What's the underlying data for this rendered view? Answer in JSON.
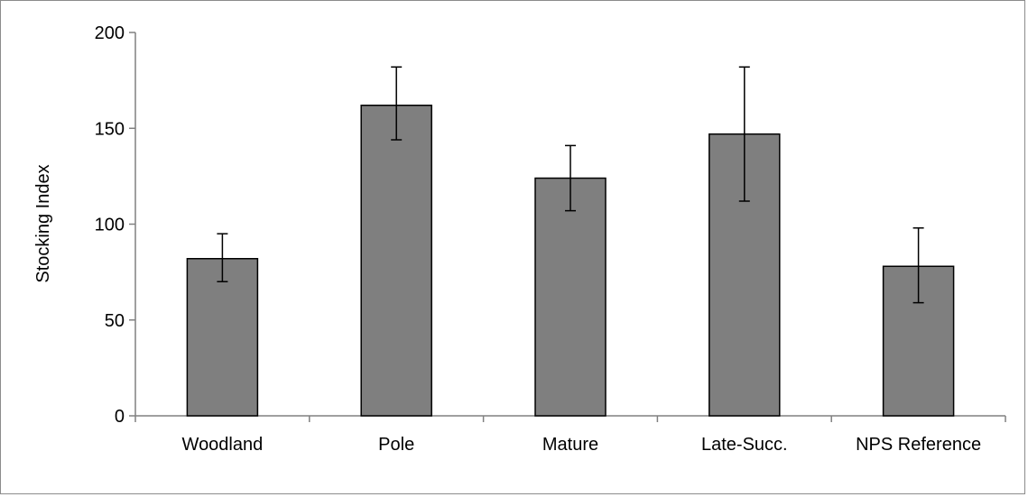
{
  "chart_data": {
    "type": "bar",
    "title": "",
    "xlabel": "",
    "ylabel": "Stocking Index",
    "ylim": [
      0,
      200
    ],
    "yticks": [
      0,
      50,
      100,
      150,
      200
    ],
    "grid": false,
    "legend": "none",
    "categories": [
      "Woodland",
      "Pole",
      "Mature",
      "Late-Succ.",
      "NPS Reference"
    ],
    "series": [
      {
        "values": [
          82,
          162,
          124,
          147,
          78
        ],
        "error_low": [
          70,
          144,
          107,
          112,
          59
        ],
        "error_high": [
          95,
          182,
          141,
          182,
          98
        ]
      }
    ],
    "colors": {
      "bar_fill": "#7f7f7f",
      "bar_stroke": "#000000",
      "axis": "#808080",
      "error_bar": "#000000"
    }
  }
}
